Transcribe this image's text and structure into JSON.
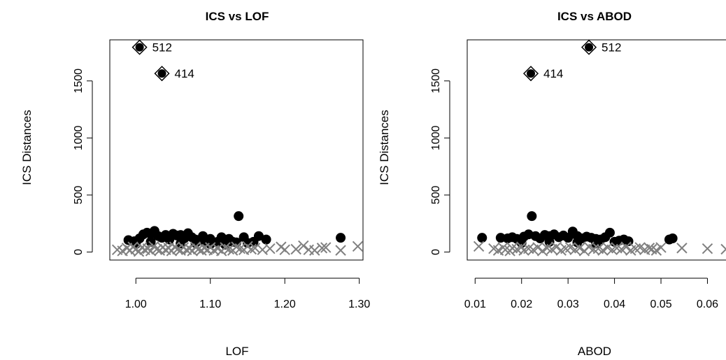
{
  "chart_data": [
    {
      "type": "scatter",
      "title": "ICS vs LOF",
      "xlabel": "LOF",
      "ylabel": "ICS Distances",
      "xlim": [
        0.965,
        1.305
      ],
      "ylim": [
        -70,
        1860
      ],
      "xticks": [
        1.0,
        1.1,
        1.2,
        1.3
      ],
      "xtick_labels": [
        "1.00",
        "1.10",
        "1.20",
        "1.30"
      ],
      "yticks": [
        0,
        500,
        1000,
        1500
      ],
      "ytick_labels": [
        "0",
        "500",
        "1000",
        "1500"
      ],
      "grid": false,
      "legend": "none",
      "colors": {
        "outlier": "#000000",
        "inlier": "#808080"
      },
      "series": [
        {
          "marker": "diamond-filled",
          "points": [
            [
              1.005,
              1795
            ],
            [
              1.035,
              1565
            ]
          ],
          "labels": [
            "512",
            "414"
          ]
        },
        {
          "marker": "filled-circle",
          "points": [
            [
              0.99,
              105
            ],
            [
              0.998,
              95
            ],
            [
              1.005,
              120
            ],
            [
              1.01,
              155
            ],
            [
              1.015,
              170
            ],
            [
              1.02,
              160
            ],
            [
              1.025,
              185
            ],
            [
              1.03,
              140
            ],
            [
              1.035,
              125
            ],
            [
              1.04,
              150
            ],
            [
              1.045,
              110
            ],
            [
              1.05,
              160
            ],
            [
              1.055,
              145
            ],
            [
              1.06,
              150
            ],
            [
              1.065,
              120
            ],
            [
              1.07,
              165
            ],
            [
              1.075,
              130
            ],
            [
              1.08,
              110
            ],
            [
              1.085,
              100
            ],
            [
              1.09,
              140
            ],
            [
              1.095,
              95
            ],
            [
              1.1,
              115
            ],
            [
              1.11,
              90
            ],
            [
              1.115,
              130
            ],
            [
              1.12,
              105
            ],
            [
              1.125,
              115
            ],
            [
              1.13,
              90
            ],
            [
              1.135,
              85
            ],
            [
              1.138,
              315
            ],
            [
              1.145,
              130
            ],
            [
              1.15,
              80
            ],
            [
              1.158,
              90
            ],
            [
              1.165,
              140
            ],
            [
              1.175,
              110
            ],
            [
              1.275,
              125
            ],
            [
              1.0,
              70
            ],
            [
              1.02,
              90
            ],
            [
              1.06,
              75
            ],
            [
              1.08,
              80
            ],
            [
              1.1,
              70
            ],
            [
              1.12,
              65
            ]
          ]
        },
        {
          "marker": "cross",
          "points": [
            [
              0.975,
              20
            ],
            [
              0.982,
              10
            ],
            [
              0.988,
              35
            ],
            [
              0.992,
              15
            ],
            [
              0.996,
              45
            ],
            [
              1.0,
              25
            ],
            [
              1.004,
              5
            ],
            [
              1.008,
              40
            ],
            [
              1.012,
              20
            ],
            [
              1.016,
              30
            ],
            [
              1.02,
              10
            ],
            [
              1.024,
              50
            ],
            [
              1.028,
              25
            ],
            [
              1.032,
              15
            ],
            [
              1.036,
              40
            ],
            [
              1.04,
              20
            ],
            [
              1.044,
              35
            ],
            [
              1.048,
              10
            ],
            [
              1.052,
              45
            ],
            [
              1.056,
              25
            ],
            [
              1.06,
              15
            ],
            [
              1.064,
              40
            ],
            [
              1.068,
              20
            ],
            [
              1.072,
              30
            ],
            [
              1.076,
              10
            ],
            [
              1.08,
              45
            ],
            [
              1.084,
              25
            ],
            [
              1.088,
              15
            ],
            [
              1.092,
              35
            ],
            [
              1.096,
              20
            ],
            [
              1.1,
              40
            ],
            [
              1.105,
              15
            ],
            [
              1.11,
              30
            ],
            [
              1.115,
              10
            ],
            [
              1.12,
              40
            ],
            [
              1.125,
              25
            ],
            [
              1.13,
              15
            ],
            [
              1.135,
              45
            ],
            [
              1.14,
              30
            ],
            [
              1.145,
              20
            ],
            [
              1.15,
              50
            ],
            [
              1.155,
              25
            ],
            [
              1.16,
              35
            ],
            [
              1.17,
              20
            ],
            [
              1.18,
              30
            ],
            [
              1.195,
              45
            ],
            [
              1.2,
              20
            ],
            [
              1.215,
              25
            ],
            [
              1.225,
              55
            ],
            [
              1.232,
              20
            ],
            [
              1.24,
              15
            ],
            [
              1.25,
              35
            ],
            [
              1.255,
              40
            ],
            [
              1.275,
              15
            ],
            [
              1.298,
              50
            ]
          ]
        }
      ]
    },
    {
      "type": "scatter",
      "title": "ICS vs ABOD",
      "xlabel": "ABOD",
      "ylabel": "ICS Distances",
      "xlim": [
        0.0083,
        0.0655
      ],
      "ylim": [
        -70,
        1860
      ],
      "xticks": [
        0.01,
        0.02,
        0.03,
        0.04,
        0.05,
        0.06
      ],
      "xtick_labels": [
        "0.01",
        "0.02",
        "0.03",
        "0.04",
        "0.05",
        "0.06"
      ],
      "yticks": [
        0,
        500,
        1000,
        1500
      ],
      "ytick_labels": [
        "0",
        "500",
        "1000",
        "1500"
      ],
      "grid": false,
      "legend": "none",
      "colors": {
        "outlier": "#000000",
        "inlier": "#808080"
      },
      "series": [
        {
          "marker": "diamond-filled",
          "points": [
            [
              0.0345,
              1795
            ],
            [
              0.022,
              1565
            ]
          ],
          "labels": [
            "512",
            "414"
          ]
        },
        {
          "marker": "filled-circle",
          "points": [
            [
              0.0115,
              125
            ],
            [
              0.0155,
              125
            ],
            [
              0.017,
              120
            ],
            [
              0.018,
              130
            ],
            [
              0.019,
              115
            ],
            [
              0.0205,
              135
            ],
            [
              0.0215,
              155
            ],
            [
              0.0222,
              315
            ],
            [
              0.023,
              140
            ],
            [
              0.024,
              120
            ],
            [
              0.025,
              150
            ],
            [
              0.026,
              140
            ],
            [
              0.027,
              155
            ],
            [
              0.028,
              130
            ],
            [
              0.029,
              145
            ],
            [
              0.03,
              125
            ],
            [
              0.031,
              180
            ],
            [
              0.032,
              140
            ],
            [
              0.033,
              120
            ],
            [
              0.034,
              135
            ],
            [
              0.035,
              125
            ],
            [
              0.036,
              115
            ],
            [
              0.037,
              110
            ],
            [
              0.038,
              130
            ],
            [
              0.039,
              170
            ],
            [
              0.04,
              90
            ],
            [
              0.041,
              100
            ],
            [
              0.042,
              110
            ],
            [
              0.043,
              95
            ],
            [
              0.0518,
              110
            ],
            [
              0.0525,
              120
            ],
            [
              0.02,
              80
            ],
            [
              0.026,
              90
            ],
            [
              0.032,
              85
            ],
            [
              0.036,
              75
            ]
          ]
        },
        {
          "marker": "cross",
          "points": [
            [
              0.0108,
              50
            ],
            [
              0.014,
              30
            ],
            [
              0.015,
              15
            ],
            [
              0.016,
              40
            ],
            [
              0.0165,
              20
            ],
            [
              0.0175,
              10
            ],
            [
              0.018,
              35
            ],
            [
              0.019,
              25
            ],
            [
              0.02,
              45
            ],
            [
              0.0205,
              15
            ],
            [
              0.0215,
              30
            ],
            [
              0.0225,
              20
            ],
            [
              0.0235,
              40
            ],
            [
              0.0245,
              10
            ],
            [
              0.0255,
              35
            ],
            [
              0.0265,
              25
            ],
            [
              0.0275,
              45
            ],
            [
              0.0285,
              15
            ],
            [
              0.0295,
              30
            ],
            [
              0.0305,
              40
            ],
            [
              0.0315,
              20
            ],
            [
              0.0325,
              35
            ],
            [
              0.0335,
              10
            ],
            [
              0.0345,
              45
            ],
            [
              0.0355,
              25
            ],
            [
              0.0365,
              30
            ],
            [
              0.0375,
              15
            ],
            [
              0.0385,
              40
            ],
            [
              0.0395,
              20
            ],
            [
              0.0405,
              35
            ],
            [
              0.0415,
              25
            ],
            [
              0.0425,
              45
            ],
            [
              0.0435,
              15
            ],
            [
              0.0445,
              30
            ],
            [
              0.0455,
              40
            ],
            [
              0.0465,
              20
            ],
            [
              0.0475,
              35
            ],
            [
              0.048,
              25
            ],
            [
              0.049,
              15
            ],
            [
              0.05,
              40
            ],
            [
              0.0545,
              35
            ],
            [
              0.06,
              30
            ],
            [
              0.064,
              25
            ]
          ]
        }
      ]
    }
  ]
}
